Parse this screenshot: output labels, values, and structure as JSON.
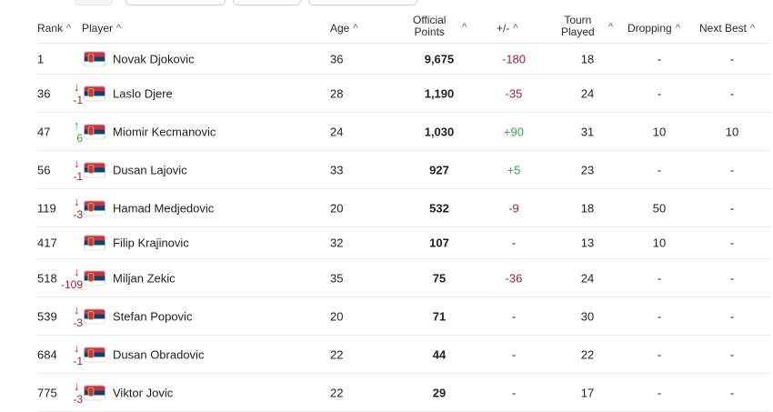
{
  "colors": {
    "accent": "#4a54b5",
    "negative": "#a3213a",
    "positive": "#2fa44f",
    "flag_red": "#c6363c",
    "flag_blue": "#0c4076",
    "flag_white": "#ffffff"
  },
  "header": {
    "rank": "Rank",
    "player": "Player",
    "age": "Age",
    "points_line1": "Official",
    "points_line2": "Points",
    "plus_minus": "+/-",
    "tourn_line1": "Tourn",
    "tourn_line2": "Played",
    "dropping": "Dropping",
    "next_best": "Next Best",
    "sort_icon": "chevron-up-icon"
  },
  "rows": [
    {
      "rank": "1",
      "move_dir": "",
      "move": "",
      "flag": "serbia-flag-icon",
      "name": "Novak Djokovic",
      "age": "36",
      "points": "9,675",
      "plus_minus": "-180",
      "pm_sign": "neg",
      "played": "18",
      "dropping": "-",
      "next_best": "-"
    },
    {
      "rank": "36",
      "move_dir": "down",
      "move": "-1",
      "flag": "serbia-flag-icon",
      "name": "Laslo Djere",
      "age": "28",
      "points": "1,190",
      "plus_minus": "-35",
      "pm_sign": "neg",
      "played": "24",
      "dropping": "-",
      "next_best": "-"
    },
    {
      "rank": "47",
      "move_dir": "up",
      "move": "6",
      "flag": "serbia-flag-icon",
      "name": "Miomir Kecmanovic",
      "age": "24",
      "points": "1,030",
      "plus_minus": "+90",
      "pm_sign": "pos",
      "played": "31",
      "dropping": "10",
      "next_best": "10"
    },
    {
      "rank": "56",
      "move_dir": "down",
      "move": "-1",
      "flag": "serbia-flag-icon",
      "name": "Dusan Lajovic",
      "age": "33",
      "points": "927",
      "plus_minus": "+5",
      "pm_sign": "pos",
      "played": "23",
      "dropping": "-",
      "next_best": "-"
    },
    {
      "rank": "119",
      "move_dir": "down",
      "move": "-3",
      "flag": "serbia-flag-icon",
      "name": "Hamad Medjedovic",
      "age": "20",
      "points": "532",
      "plus_minus": "-9",
      "pm_sign": "neg",
      "played": "18",
      "dropping": "50",
      "next_best": "-"
    },
    {
      "rank": "417",
      "move_dir": "",
      "move": "",
      "flag": "serbia-flag-icon",
      "name": "Filip Krajinovic",
      "age": "32",
      "points": "107",
      "plus_minus": "-",
      "pm_sign": "none",
      "played": "13",
      "dropping": "10",
      "next_best": "-"
    },
    {
      "rank": "518",
      "move_dir": "down",
      "move": "-109",
      "flag": "serbia-flag-icon",
      "name": "Miljan Zekic",
      "age": "35",
      "points": "75",
      "plus_minus": "-36",
      "pm_sign": "neg",
      "played": "24",
      "dropping": "-",
      "next_best": "-"
    },
    {
      "rank": "539",
      "move_dir": "down",
      "move": "-3",
      "flag": "serbia-flag-icon",
      "name": "Stefan Popovic",
      "age": "20",
      "points": "71",
      "plus_minus": "-",
      "pm_sign": "none",
      "played": "30",
      "dropping": "-",
      "next_best": "-"
    },
    {
      "rank": "684",
      "move_dir": "down",
      "move": "-1",
      "flag": "serbia-flag-icon",
      "name": "Dusan Obradovic",
      "age": "22",
      "points": "44",
      "plus_minus": "-",
      "pm_sign": "none",
      "played": "22",
      "dropping": "-",
      "next_best": "-"
    },
    {
      "rank": "775",
      "move_dir": "down",
      "move": "-3",
      "flag": "serbia-flag-icon",
      "name": "Viktor Jovic",
      "age": "22",
      "points": "29",
      "plus_minus": "-",
      "pm_sign": "none",
      "played": "17",
      "dropping": "-",
      "next_best": "-"
    }
  ]
}
